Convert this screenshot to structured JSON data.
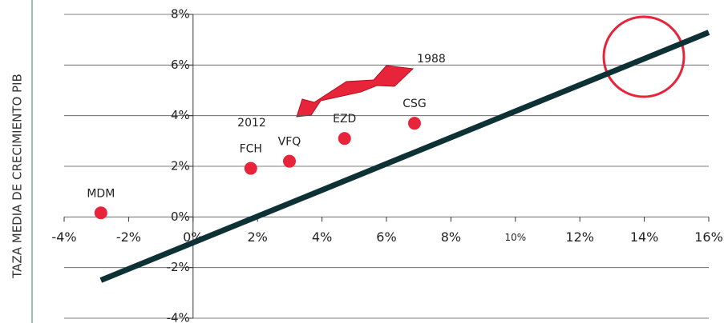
{
  "chart_data": {
    "type": "scatter",
    "ylabel": "TAZA MEDIA DE CRECIMIENTO PIB",
    "labels": [
      "MDM",
      "FCH",
      "VFQ",
      "EZD",
      "CSG"
    ],
    "x": [
      -2.86,
      1.79,
      2.99,
      4.7,
      6.87
    ],
    "values": [
      0.16,
      1.92,
      2.2,
      3.1,
      3.7
    ],
    "color": "#e8243a",
    "line": {
      "x": [
        -2.86,
        16
      ],
      "values": [
        -2.5,
        7.29
      ],
      "color": "#0d3135"
    },
    "annotations": [
      "1988",
      "2012"
    ],
    "xlim": [
      -4,
      16
    ],
    "xticks": [
      {
        "value": -4,
        "label": "-4%"
      },
      {
        "value": -2,
        "label": "-2%"
      },
      {
        "value": 0,
        "label": "0%"
      },
      {
        "value": 2,
        "label": "2%"
      },
      {
        "value": 4,
        "label": "4%"
      },
      {
        "value": 6,
        "label": "6%"
      },
      {
        "value": 8,
        "label": "8%"
      },
      {
        "value": 10,
        "label": "10%"
      },
      {
        "value": 12,
        "label": "12%"
      },
      {
        "value": 14,
        "label": "14%"
      },
      {
        "value": 16,
        "label": "16%"
      }
    ],
    "ylim": [
      -4,
      8
    ],
    "yticks": [
      {
        "value": -4,
        "label": "-4%"
      },
      {
        "value": -2,
        "label": "-2%"
      },
      {
        "value": 0,
        "label": "0%"
      },
      {
        "value": 2,
        "label": "2%"
      },
      {
        "value": 4,
        "label": "4%"
      },
      {
        "value": 6,
        "label": "6%"
      },
      {
        "value": 8,
        "label": "8%"
      }
    ],
    "grid": true
  }
}
